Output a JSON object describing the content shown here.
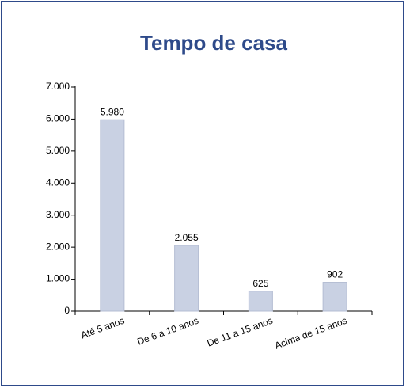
{
  "chart_data": {
    "type": "bar",
    "title": "Tempo de casa",
    "categories": [
      "Até 5 anos",
      "De 6 a 10 anos",
      "De 11 a 15 anos",
      "Acima de 15 anos"
    ],
    "values": [
      5980,
      2055,
      625,
      902
    ],
    "value_labels": [
      "5.980",
      "2.055",
      "625",
      "902"
    ],
    "color": "#c9d1e3",
    "ylim": [
      0,
      7000
    ],
    "yticks": [
      0,
      {
        "value": 1000,
        "label": "1.000"
      },
      {
        "value": 2000,
        "label": "2.000"
      },
      {
        "value": 3000,
        "label": "3.000"
      },
      {
        "value": 4000,
        "label": "4.000"
      },
      {
        "value": 5000,
        "label": "5.000"
      },
      {
        "value": 6000,
        "label": "6.000"
      },
      {
        "value": 7000,
        "label": "7.000"
      }
    ],
    "grid": false
  }
}
